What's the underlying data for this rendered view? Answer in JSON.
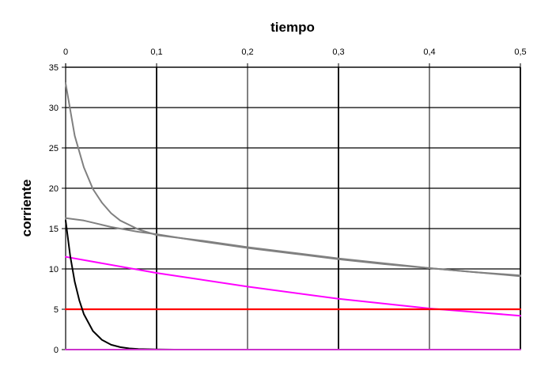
{
  "chart_data": {
    "type": "line",
    "title": "",
    "xlabel": "tiempo",
    "ylabel": "corriente",
    "xlim": [
      0,
      0.5
    ],
    "ylim": [
      0,
      35
    ],
    "x_ticks": [
      "0",
      "0,1",
      "0,2",
      "0,3",
      "0,4",
      "0,5"
    ],
    "y_ticks": [
      "0",
      "5",
      "10",
      "15",
      "20",
      "25",
      "30",
      "35"
    ],
    "x_axis_position": "top",
    "grid": true,
    "legend": "none",
    "series": [
      {
        "color": "#808080",
        "x": [
          0,
          0.01,
          0.02,
          0.03,
          0.04,
          0.05,
          0.06,
          0.08,
          0.1,
          0.15,
          0.2,
          0.3,
          0.4,
          0.5
        ],
        "y": [
          33.0,
          26.5,
          22.6,
          19.9,
          18.2,
          16.9,
          16.0,
          14.9,
          14.2,
          13.5,
          12.7,
          11.3,
          10.1,
          9.1
        ]
      },
      {
        "color": "#808080",
        "x": [
          0,
          0.02,
          0.05,
          0.08,
          0.1,
          0.15,
          0.2,
          0.25,
          0.3,
          0.35,
          0.4,
          0.45,
          0.5
        ],
        "y": [
          16.3,
          16.0,
          15.2,
          14.6,
          14.3,
          13.4,
          12.6,
          11.9,
          11.2,
          10.6,
          10.1,
          9.6,
          9.2
        ]
      },
      {
        "color": "#ff00ff",
        "x": [
          0,
          0.1,
          0.2,
          0.3,
          0.4,
          0.5
        ],
        "y": [
          11.5,
          9.5,
          7.8,
          6.3,
          5.1,
          4.2
        ]
      },
      {
        "color": "#ff0000",
        "x": [
          0,
          0.5
        ],
        "y": [
          5,
          5
        ]
      },
      {
        "color": "#000000",
        "x": [
          0,
          0.005,
          0.01,
          0.015,
          0.02,
          0.03,
          0.04,
          0.05,
          0.06,
          0.07,
          0.08,
          0.1,
          0.12
        ],
        "y": [
          16.0,
          11.6,
          8.4,
          6.1,
          4.4,
          2.3,
          1.2,
          0.6,
          0.3,
          0.15,
          0.08,
          0.02,
          0.0
        ]
      },
      {
        "color": "#cc33cc",
        "x": [
          0,
          0.5
        ],
        "y": [
          0,
          0
        ]
      }
    ]
  }
}
